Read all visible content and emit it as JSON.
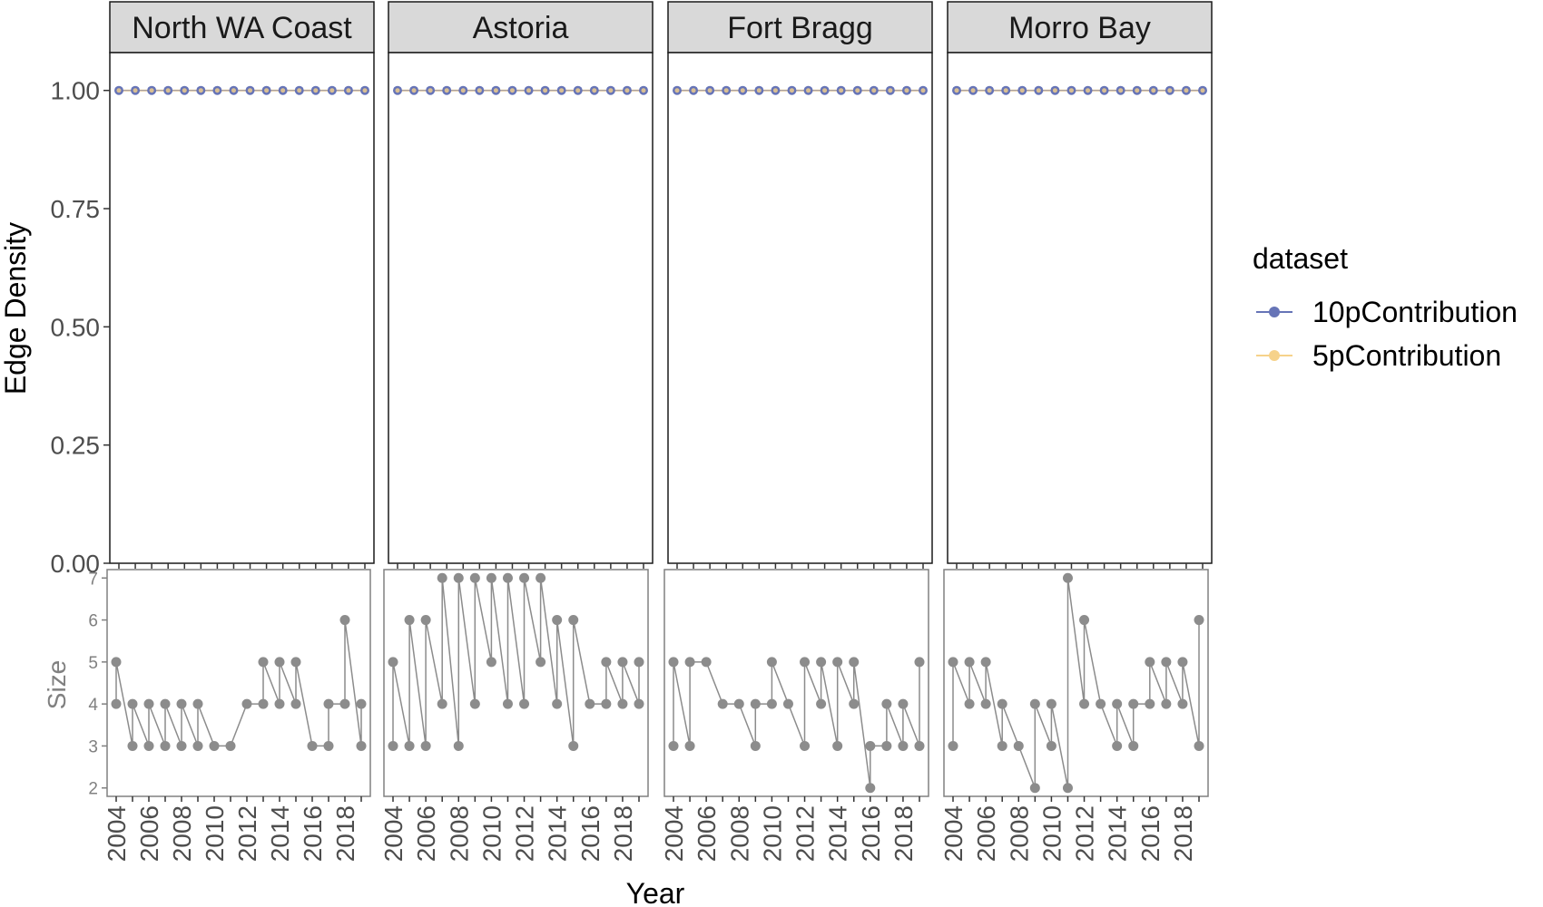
{
  "chart_data": {
    "type": "line",
    "xlabel": "Year",
    "x_ticks": [
      "2004",
      "2006",
      "2008",
      "2010",
      "2012",
      "2014",
      "2016",
      "2018"
    ],
    "legend": {
      "title": "dataset",
      "position": "right",
      "entries": [
        {
          "name": "10pContribution",
          "color": "#6674b7"
        },
        {
          "name": "5pContribution",
          "color": "#f6d28a"
        }
      ]
    },
    "top": {
      "ylabel": "Edge Density",
      "ylim": [
        0,
        1.08
      ],
      "y_ticks": [
        "0.00",
        "0.25",
        "0.50",
        "0.75",
        "1.00"
      ],
      "y_tick_values": [
        0,
        0.25,
        0.5,
        0.75,
        1.0
      ],
      "grid": false
    },
    "bottom": {
      "ylabel": "Size",
      "ylim": [
        1.8,
        7.2
      ],
      "y_ticks": [
        "2",
        "3",
        "4",
        "5",
        "6",
        "7"
      ],
      "y_tick_values": [
        2,
        3,
        4,
        5,
        6,
        7
      ],
      "color": "#8c8c8c",
      "grid": false
    },
    "years": [
      2004,
      2005,
      2006,
      2007,
      2008,
      2009,
      2010,
      2011,
      2012,
      2013,
      2014,
      2015,
      2016,
      2017,
      2018,
      2019
    ],
    "panels": [
      {
        "name": "North WA Coast",
        "series": [
          {
            "name": "10pContribution",
            "values": [
              1,
              1,
              1,
              1,
              1,
              1,
              1,
              1,
              1,
              1,
              1,
              1,
              1,
              1,
              1,
              1
            ]
          },
          {
            "name": "5pContribution",
            "values": [
              1,
              1,
              1,
              1,
              1,
              1,
              1,
              1,
              1,
              1,
              1,
              1,
              1,
              1,
              1,
              1
            ]
          }
        ],
        "size": [
          [
            4,
            5
          ],
          [
            3,
            4
          ],
          [
            3,
            4
          ],
          [
            3,
            4
          ],
          [
            3,
            4
          ],
          [
            3,
            4
          ],
          [
            3,
            3
          ],
          [
            3,
            3
          ],
          [
            4,
            4
          ],
          [
            4,
            5
          ],
          [
            4,
            5
          ],
          [
            4,
            5
          ],
          [
            3,
            3
          ],
          [
            3,
            4
          ],
          [
            4,
            6
          ],
          [
            3,
            4
          ]
        ]
      },
      {
        "name": "Astoria",
        "series": [
          {
            "name": "10pContribution",
            "values": [
              1,
              1,
              1,
              1,
              1,
              1,
              1,
              1,
              1,
              1,
              1,
              1,
              1,
              1,
              1,
              1
            ]
          },
          {
            "name": "5pContribution",
            "values": [
              1,
              1,
              1,
              1,
              1,
              1,
              1,
              1,
              1,
              1,
              1,
              1,
              1,
              1,
              1,
              1
            ]
          }
        ],
        "size": [
          [
            3,
            5
          ],
          [
            3,
            6
          ],
          [
            3,
            6
          ],
          [
            4,
            7
          ],
          [
            3,
            7
          ],
          [
            4,
            7
          ],
          [
            5,
            7
          ],
          [
            4,
            7
          ],
          [
            4,
            7
          ],
          [
            5,
            7
          ],
          [
            4,
            6
          ],
          [
            3,
            6
          ],
          [
            4,
            4
          ],
          [
            4,
            5
          ],
          [
            4,
            5
          ],
          [
            4,
            5
          ]
        ]
      },
      {
        "name": "Fort Bragg",
        "series": [
          {
            "name": "10pContribution",
            "values": [
              1,
              1,
              1,
              1,
              1,
              1,
              1,
              1,
              1,
              1,
              1,
              1,
              1,
              1,
              1,
              1
            ]
          },
          {
            "name": "5pContribution",
            "values": [
              1,
              1,
              1,
              1,
              1,
              1,
              1,
              1,
              1,
              1,
              1,
              1,
              1,
              1,
              1,
              1
            ]
          }
        ],
        "size": [
          [
            3,
            5
          ],
          [
            3,
            5
          ],
          [
            5,
            5
          ],
          [
            4,
            4
          ],
          [
            4,
            4
          ],
          [
            3,
            4
          ],
          [
            4,
            5
          ],
          [
            4,
            4
          ],
          [
            3,
            5
          ],
          [
            4,
            5
          ],
          [
            3,
            5
          ],
          [
            4,
            5
          ],
          [
            2,
            3
          ],
          [
            3,
            4
          ],
          [
            3,
            4
          ],
          [
            3,
            5
          ]
        ]
      },
      {
        "name": "Morro Bay",
        "series": [
          {
            "name": "10pContribution",
            "values": [
              1,
              1,
              1,
              1,
              1,
              1,
              1,
              1,
              1,
              1,
              1,
              1,
              1,
              1,
              1,
              1
            ]
          },
          {
            "name": "5pContribution",
            "values": [
              1,
              1,
              1,
              1,
              1,
              1,
              1,
              1,
              1,
              1,
              1,
              1,
              1,
              1,
              1,
              1
            ]
          }
        ],
        "size": [
          [
            3,
            5
          ],
          [
            4,
            5
          ],
          [
            4,
            5
          ],
          [
            3,
            4
          ],
          [
            3,
            3
          ],
          [
            2,
            4
          ],
          [
            3,
            4
          ],
          [
            2,
            7
          ],
          [
            4,
            6
          ],
          [
            4,
            4
          ],
          [
            3,
            4
          ],
          [
            3,
            4
          ],
          [
            4,
            5
          ],
          [
            4,
            5
          ],
          [
            4,
            5
          ],
          [
            3,
            6
          ]
        ]
      }
    ]
  }
}
